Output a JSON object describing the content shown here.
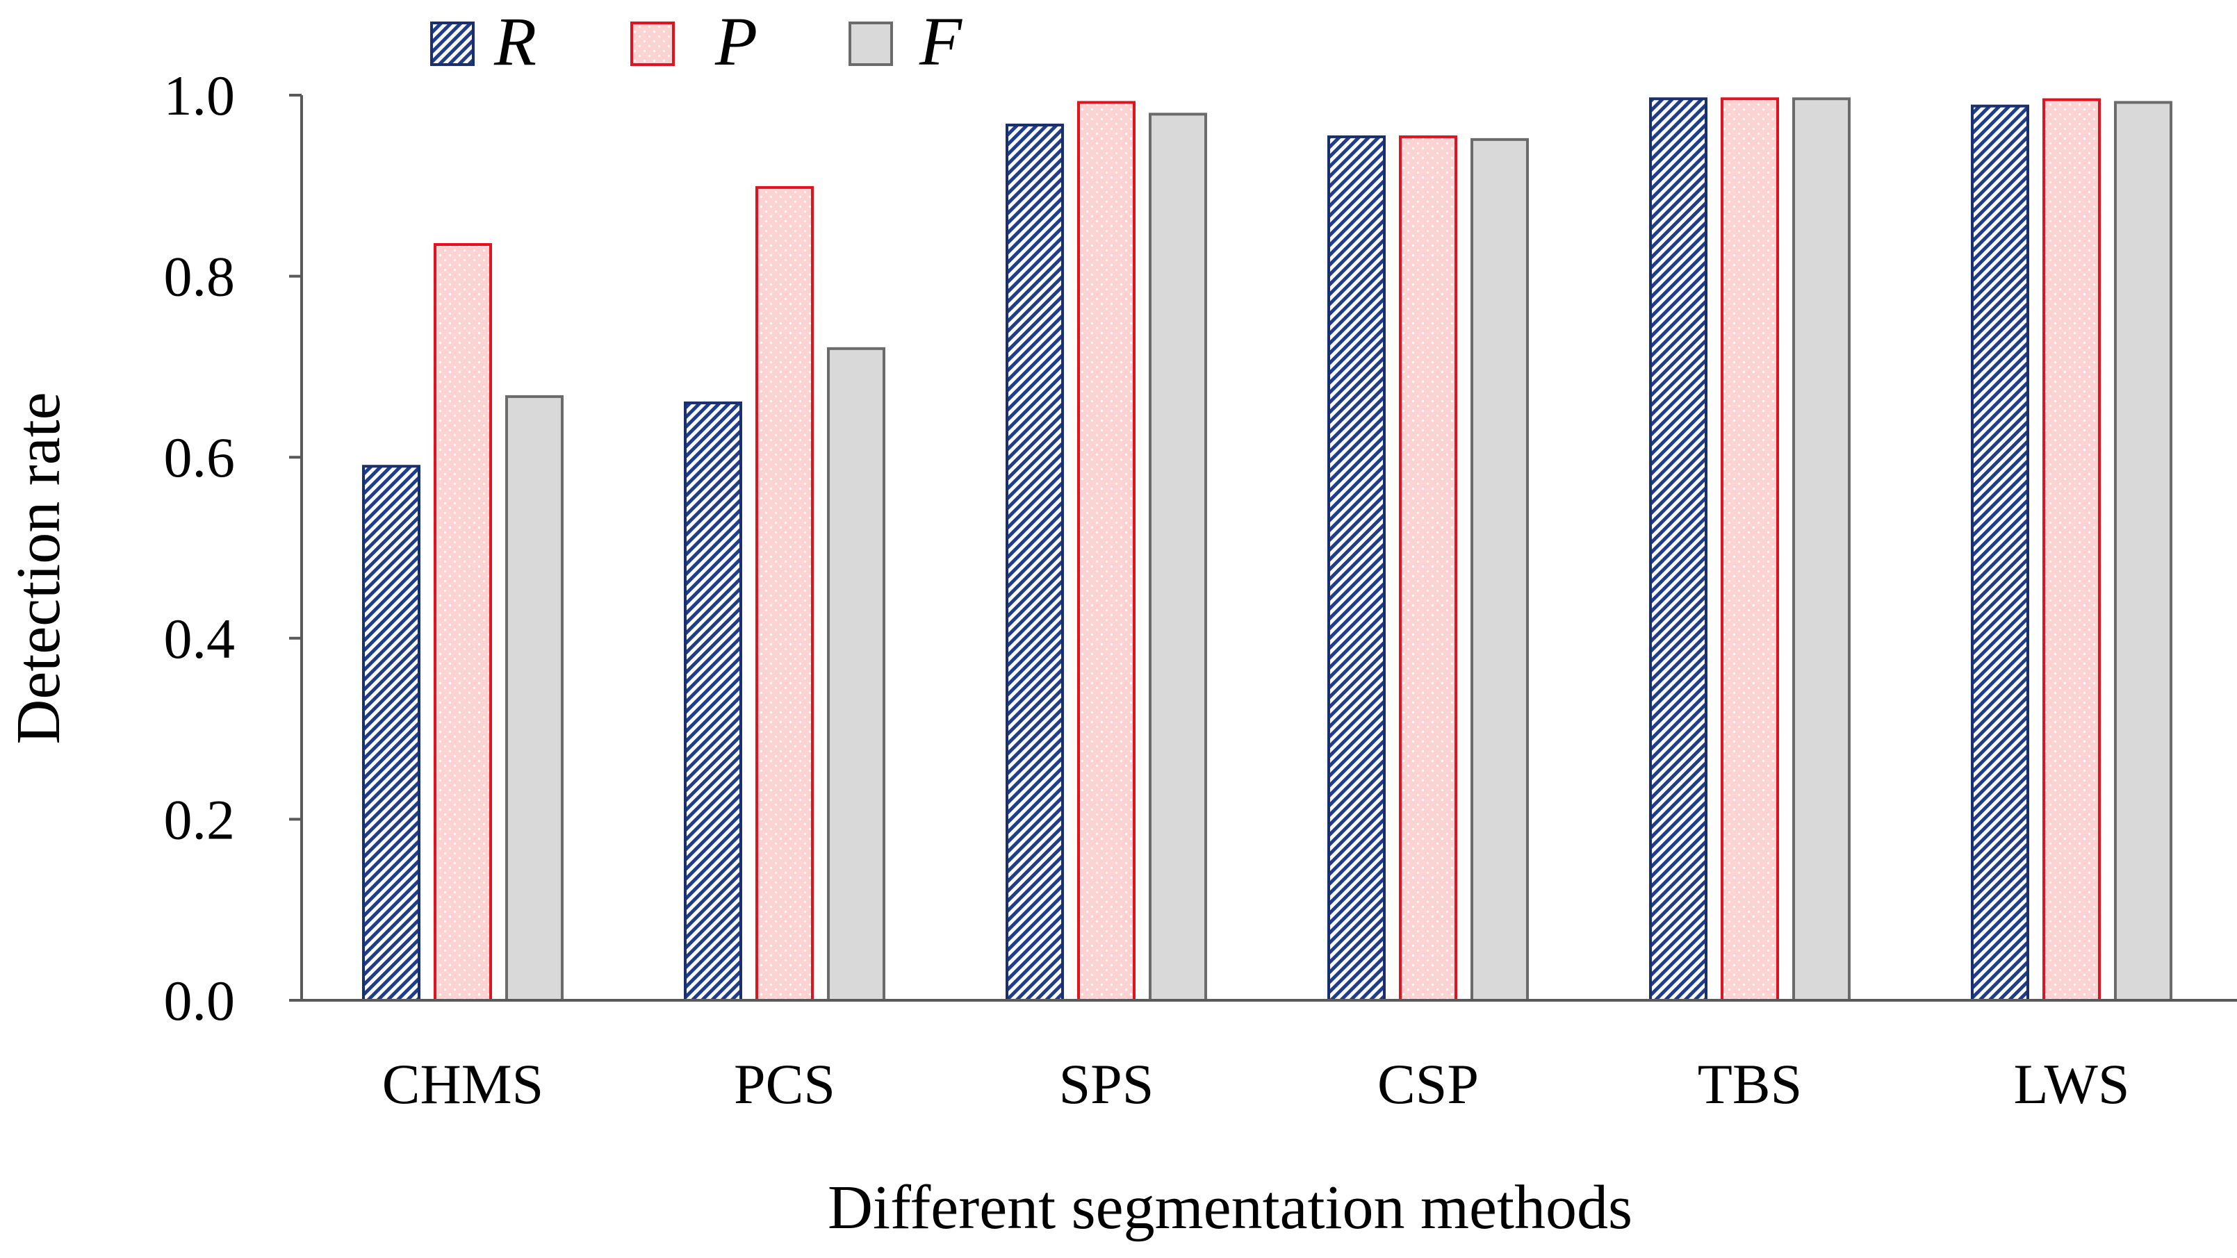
{
  "chart_data": {
    "type": "bar",
    "title": "",
    "xlabel": "Different segmentation methods",
    "ylabel": "Detection rate",
    "ylim": [
      0.0,
      1.0
    ],
    "yticks": [
      "0.0",
      "0.2",
      "0.4",
      "0.6",
      "0.8",
      "1.0"
    ],
    "grid": false,
    "legend_position": "top-left",
    "categories": [
      "CHMS",
      "PCS",
      "SPS",
      "CSP",
      "TBS",
      "LWS"
    ],
    "series": [
      {
        "name": "R",
        "values": [
          0.59,
          0.66,
          0.967,
          0.954,
          0.996,
          0.988
        ],
        "fill": "#1f3d8a",
        "stroke": "#1a2f6e",
        "pattern": "diagonal-hatch"
      },
      {
        "name": "P",
        "values": [
          0.835,
          0.898,
          0.992,
          0.954,
          0.996,
          0.995
        ],
        "fill": "#fcd2d2",
        "stroke": "#e0141e",
        "pattern": "dots"
      },
      {
        "name": "F",
        "values": [
          0.667,
          0.72,
          0.979,
          0.951,
          0.996,
          0.992
        ],
        "fill": "#d9d9d9",
        "stroke": "#6b6b6b",
        "pattern": "solid"
      }
    ]
  }
}
